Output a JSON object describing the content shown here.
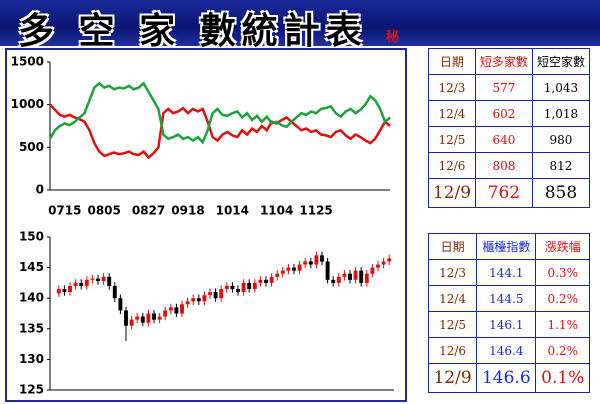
{
  "header": {
    "title": "多 空 家 數統計表",
    "badge": "秘"
  },
  "chart_data": [
    {
      "type": "line",
      "categories": [
        null,
        null,
        null,
        "0715",
        null,
        null,
        null,
        null,
        null,
        null,
        null,
        "0805",
        null,
        null,
        null,
        null,
        null,
        null,
        null,
        null,
        "0827",
        null,
        null,
        null,
        null,
        null,
        null,
        null,
        "0918",
        null,
        null,
        null,
        null,
        null,
        null,
        null,
        null,
        "1014",
        null,
        null,
        null,
        null,
        null,
        null,
        null,
        null,
        "1104",
        null,
        null,
        null,
        null,
        null,
        null,
        null,
        "1125",
        null,
        null,
        null,
        null,
        null,
        null,
        null,
        null,
        null,
        null,
        null,
        null,
        null,
        null,
        null
      ],
      "series": [
        {
          "color": "#e01010",
          "values": [
            1000,
            940,
            880,
            860,
            880,
            850,
            830,
            800,
            700,
            550,
            450,
            400,
            420,
            440,
            420,
            430,
            450,
            420,
            410,
            450,
            380,
            430,
            500,
            900,
            950,
            900,
            920,
            960,
            900,
            950,
            920,
            950,
            800,
            620,
            580,
            650,
            680,
            640,
            620,
            700,
            650,
            720,
            680,
            750,
            700,
            800,
            780,
            820,
            850,
            800,
            750,
            700,
            720,
            680,
            700,
            650,
            640,
            620,
            680,
            700,
            640,
            600,
            650,
            620,
            580,
            550,
            600,
            700,
            800,
            750
          ]
        },
        {
          "color": "#20a040",
          "values": [
            600,
            700,
            750,
            780,
            760,
            800,
            850,
            900,
            1050,
            1200,
            1250,
            1200,
            1220,
            1180,
            1200,
            1190,
            1220,
            1180,
            1200,
            1250,
            1150,
            1050,
            950,
            650,
            600,
            620,
            650,
            600,
            620,
            580,
            620,
            560,
            700,
            900,
            950,
            880,
            870,
            900,
            920,
            850,
            900,
            820,
            870,
            800,
            860,
            780,
            800,
            760,
            740,
            800,
            850,
            900,
            880,
            920,
            900,
            950,
            960,
            980,
            900,
            860,
            920,
            950,
            900,
            940,
            1000,
            1100,
            1050,
            950,
            800,
            850
          ]
        }
      ],
      "ylim": [
        0,
        1500
      ],
      "yticks": [
        0,
        500,
        1000,
        1500
      ],
      "grid": false
    },
    {
      "type": "candlestick",
      "up_color": "#e01010",
      "down_color": "#000000",
      "open": [
        140.8,
        141.5,
        141,
        142,
        142.5,
        142,
        143,
        143.2,
        142.8,
        143.5,
        142,
        140,
        138,
        135.5,
        136.5,
        137,
        136,
        137.5,
        136.5,
        137,
        138,
        138.5,
        137.5,
        139,
        139.5,
        140,
        139.5,
        140.5,
        141,
        140,
        141.5,
        142,
        141.5,
        141,
        142.5,
        141.5,
        142.5,
        143,
        142.5,
        143.5,
        144,
        144.5,
        145,
        144.5,
        145.5,
        146,
        145.5,
        147,
        146,
        143,
        142.5,
        143.5,
        144,
        143,
        144.5,
        142.5,
        144,
        145,
        145.5,
        146
      ],
      "high": [
        142.1,
        142.1,
        142.6,
        143.1,
        143.1,
        143.6,
        143.8,
        143.8,
        144.1,
        144.1,
        142.6,
        140.6,
        138.6,
        137.1,
        137.6,
        137.6,
        138.1,
        138.1,
        137.6,
        138.6,
        139.1,
        139.1,
        139.6,
        140.1,
        140.6,
        140.6,
        141.1,
        141.6,
        141.6,
        142.1,
        142.6,
        142.6,
        142.1,
        143.1,
        143.1,
        143.1,
        143.6,
        143.6,
        144.1,
        144.6,
        145.1,
        145.6,
        145.6,
        146.1,
        146.6,
        146.6,
        147.6,
        147.6,
        146.6,
        143.6,
        144.1,
        144.6,
        144.6,
        145.1,
        145.1,
        144.6,
        145.6,
        146.1,
        146.6,
        147.1
      ],
      "low": [
        140.2,
        140.4,
        140.4,
        141.4,
        141.4,
        141.4,
        142.4,
        142.2,
        142.2,
        141.4,
        139.4,
        137.4,
        133,
        134.9,
        135.9,
        135.4,
        135.4,
        135.9,
        135.9,
        136.4,
        137.4,
        136.9,
        136.9,
        138.4,
        138.9,
        138.9,
        138.9,
        139.9,
        139.4,
        139.4,
        140.9,
        140.9,
        140.4,
        140.4,
        140.9,
        140.9,
        141.9,
        141.9,
        141.9,
        142.9,
        143.4,
        143.9,
        143.9,
        143.9,
        144.9,
        144.9,
        144.9,
        145.4,
        142.4,
        141.9,
        141.9,
        142.9,
        142.4,
        142.4,
        141.9,
        141.9,
        143.4,
        144.4,
        144.9,
        145.4
      ],
      "close": [
        141.5,
        141,
        142,
        142.5,
        142,
        143,
        143.2,
        142.8,
        143.5,
        142,
        140,
        138,
        135.5,
        136.5,
        137,
        136,
        137.5,
        136.5,
        137,
        138,
        138.5,
        137.5,
        139,
        139.5,
        140,
        139.5,
        140.5,
        141,
        140,
        141.5,
        142,
        141.5,
        141,
        142.5,
        141.5,
        142.5,
        143,
        142.5,
        143.5,
        144,
        144.5,
        145,
        144.5,
        145.5,
        146,
        145.5,
        147,
        146,
        143,
        142.5,
        143.5,
        144,
        143,
        144.5,
        142.5,
        144,
        145,
        145.5,
        146,
        146.5
      ],
      "ylim": [
        125,
        150
      ],
      "yticks": [
        125,
        130,
        135,
        140,
        145,
        150
      ],
      "grid": false
    }
  ],
  "tables": [
    {
      "columns": [
        "日期",
        "短多家數",
        "短空家數"
      ],
      "column_colors": [
        "#7a2a00",
        "#e01010",
        "#000000"
      ],
      "rows": [
        [
          "12/3",
          "577",
          "1,043"
        ],
        [
          "12/4",
          "602",
          "1,018"
        ],
        [
          "12/5",
          "640",
          "980"
        ],
        [
          "12/6",
          "808",
          "812"
        ],
        [
          "12/9",
          "762",
          "858"
        ]
      ]
    },
    {
      "columns": [
        "日期",
        "櫃檯指數",
        "漲跌幅"
      ],
      "column_colors": [
        "#7a2a00",
        "#1a2ad0",
        "#e01010"
      ],
      "rows": [
        [
          "12/3",
          "144.1",
          "0.3%"
        ],
        [
          "12/4",
          "144.5",
          "0.2%"
        ],
        [
          "12/5",
          "146.1",
          "1.1%"
        ],
        [
          "12/6",
          "146.4",
          "0.2%"
        ],
        [
          "12/9",
          "146.6",
          "0.1%"
        ]
      ]
    }
  ]
}
